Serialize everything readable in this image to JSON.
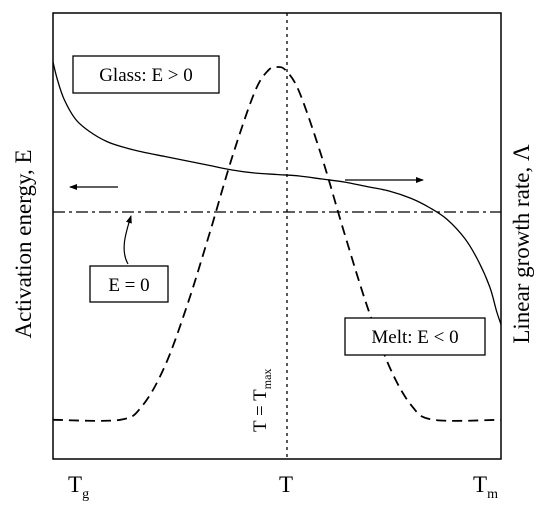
{
  "chart_data": {
    "type": "line",
    "y_left_label": "Activation energy, E",
    "y_right_label": "Linear growth rate, Λ",
    "x_tick_labels": [
      {
        "main": "T",
        "sub": "g"
      },
      {
        "main": "T",
        "sub": ""
      },
      {
        "main": "T",
        "sub": "m"
      }
    ],
    "vertical_line_label": {
      "main": "T = T",
      "sub": "max"
    },
    "annotations": {
      "glass": "Glass: E > 0",
      "zero": "E = 0",
      "melt": "Melt: E < 0"
    },
    "series": [
      {
        "style": "solid",
        "axis": "left",
        "x": [
          0,
          0.01,
          0.025,
          0.05,
          0.08,
          0.12,
          0.16,
          0.2,
          0.25,
          0.3,
          0.35,
          0.4,
          0.45,
          0.5,
          0.55,
          0.6,
          0.65,
          0.7,
          0.75,
          0.8,
          0.84,
          0.88,
          0.92,
          0.95,
          0.975,
          0.99,
          1.0
        ],
        "y": [
          1.0,
          0.88,
          0.75,
          0.62,
          0.54,
          0.47,
          0.43,
          0.4,
          0.37,
          0.34,
          0.31,
          0.28,
          0.26,
          0.25,
          0.24,
          0.22,
          0.2,
          0.17,
          0.14,
          0.09,
          0.03,
          -0.05,
          -0.18,
          -0.33,
          -0.5,
          -0.66,
          -0.75
        ]
      },
      {
        "style": "dashed",
        "axis": "right",
        "x": [
          0,
          0.15,
          0.2,
          0.25,
          0.3,
          0.35,
          0.4,
          0.45,
          0.48,
          0.5,
          0.52,
          0.55,
          0.6,
          0.65,
          0.7,
          0.75,
          0.8,
          0.85,
          1.0
        ],
        "y": [
          0.02,
          0.02,
          0.06,
          0.17,
          0.34,
          0.54,
          0.75,
          0.93,
          0.99,
          1.0,
          0.99,
          0.93,
          0.75,
          0.54,
          0.34,
          0.17,
          0.06,
          0.02,
          0.02
        ]
      }
    ],
    "reference_lines": {
      "horizontal": "E = 0",
      "vertical": "T = Tmax"
    }
  }
}
